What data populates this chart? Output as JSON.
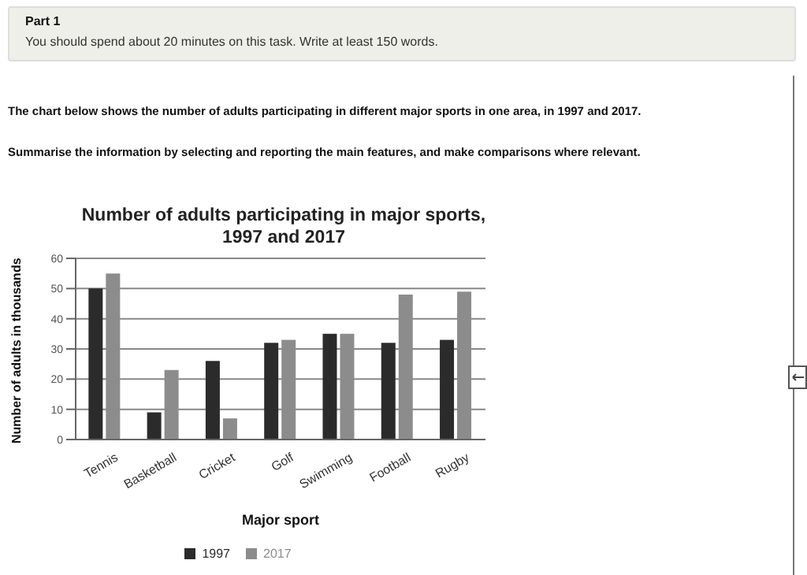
{
  "chart_data": {
    "type": "bar",
    "title": "Number of adults participating in major sports, 1997 and 2017",
    "xlabel": "Major sport",
    "ylabel": "Number of adults in thousands",
    "annotations": [
      "Part 1",
      "You should spend about 20 minutes on this task. Write at least 150 words.",
      "The chart below shows the number of adults participating in different major sports in one area, in 1997 and 2017.",
      "Summarise the information by selecting and reporting the main features, and make comparisons where relevant."
    ],
    "categories": [
      "Tennis",
      "Basketball",
      "Cricket",
      "Golf",
      "Swimming",
      "Football",
      "Rugby"
    ],
    "series": [
      {
        "name": "1997",
        "color": "#2b2b2b",
        "values": [
          50,
          9,
          26,
          32,
          35,
          32,
          33
        ]
      },
      {
        "name": "2017",
        "color": "#8c8c8c",
        "values": [
          55,
          23,
          7,
          33,
          35,
          48,
          49
        ]
      }
    ],
    "ylim": [
      0,
      60
    ],
    "yticks": [
      0,
      10,
      20,
      30,
      40,
      50,
      60
    ],
    "grid": "y",
    "legend": "bottom"
  }
}
